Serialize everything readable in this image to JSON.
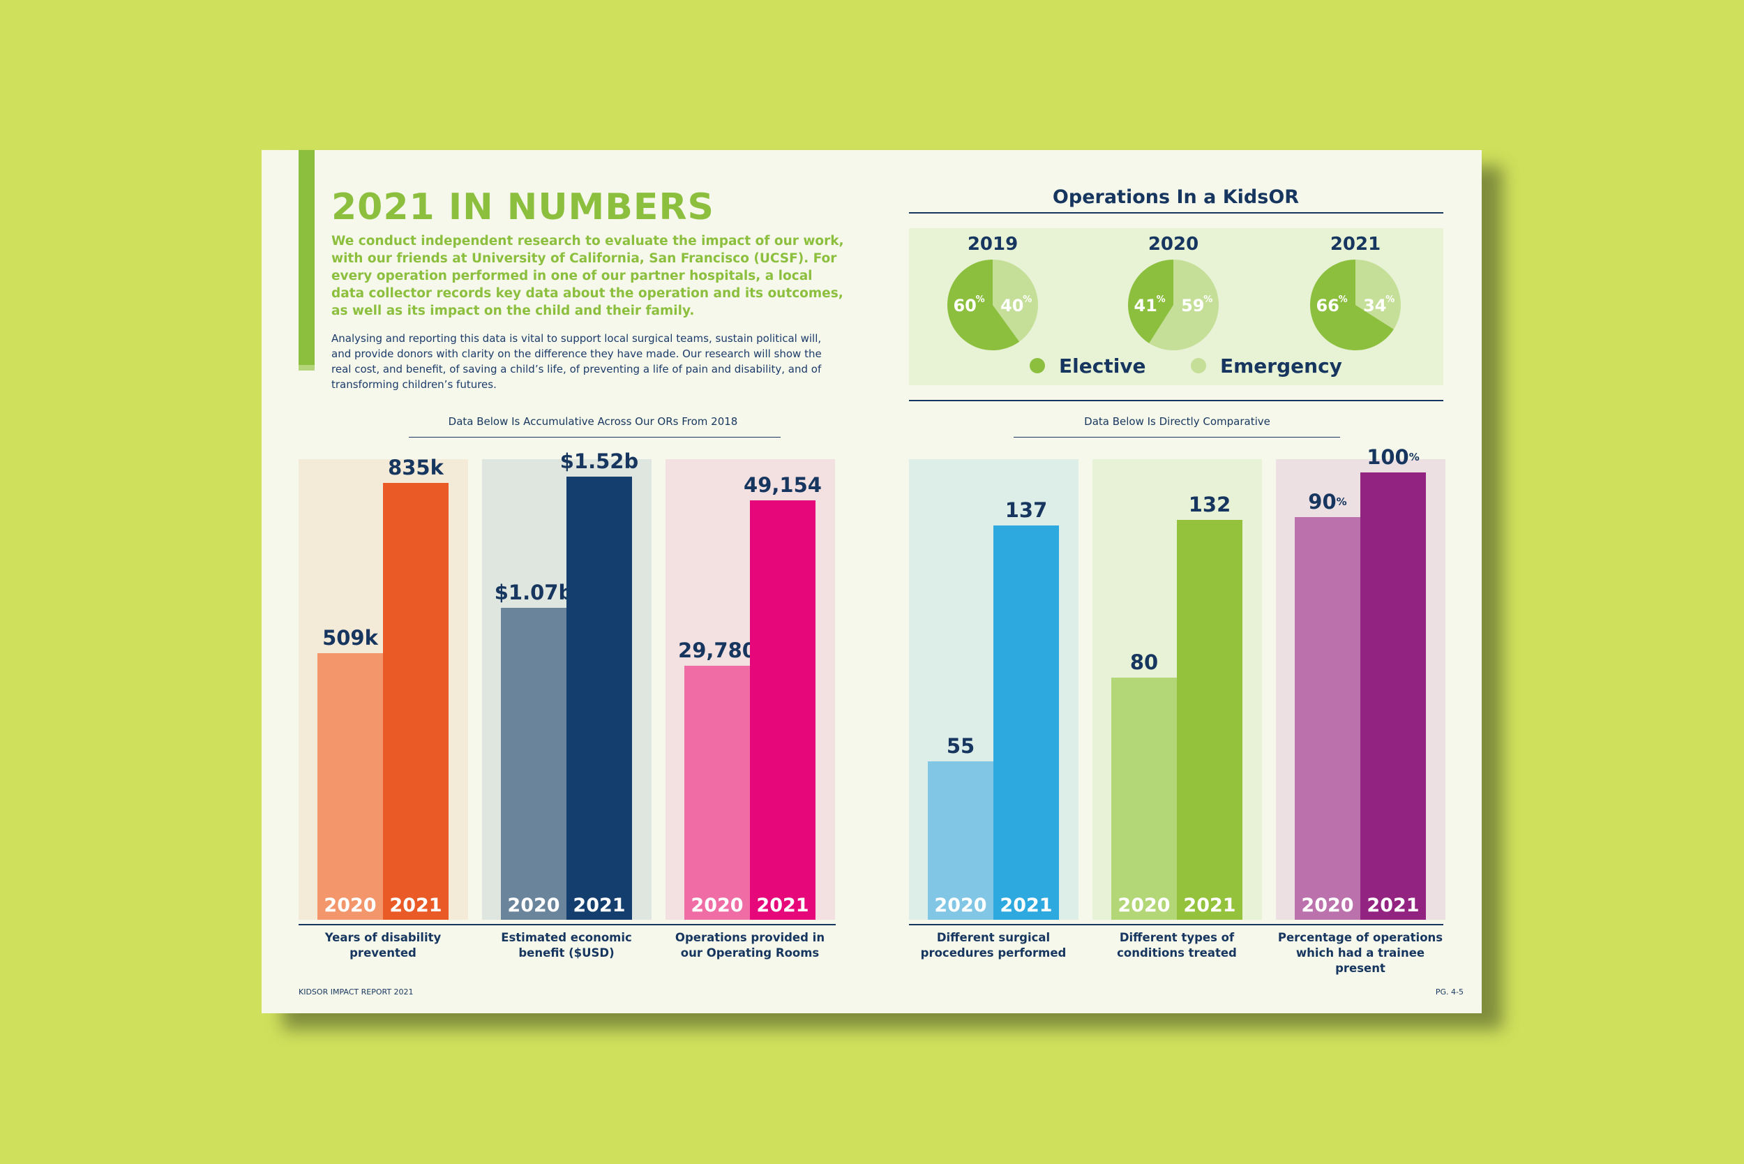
{
  "header": {
    "title": "2021 IN NUMBERS",
    "intro": "We conduct independent research to evaluate the impact of our work, with our friends at University of California, San Francisco (UCSF). For every operation performed in one of our partner hospitals, a local data collector records key data about the operation and its outcomes, as well as its impact on the child and their family.",
    "body": "Analysing and reporting this data is vital to support local surgical teams, sustain political will, and provide donors with clarity on the difference they have made. Our research will show the real cost, and benefit, of saving a child’s life, of preventing a life of pain and disability, and of transforming children’s futures."
  },
  "operations": {
    "title": "Operations In a KidsOR",
    "legend": {
      "elective": "Elective",
      "emergency": "Emergency"
    }
  },
  "notes": {
    "left": "Data Below Is Accumulative Across Our ORs From 2018",
    "right": "Data Below Is Directly Comparative"
  },
  "colors": {
    "background": "#cfe05c",
    "page": "#f5f8ea",
    "brand_green": "#8dbf3f",
    "navy": "#17365f",
    "elective": "#8dbf3f",
    "emergency": "#c5df98"
  },
  "footer": {
    "left": "KIDSOR IMPACT REPORT 2021",
    "right": "PG. 4-5"
  },
  "chart_data": [
    {
      "type": "pie",
      "title": "2019",
      "slices": [
        {
          "label": "Elective",
          "value": 60,
          "display": "60",
          "unit": "%",
          "color": "#8dbf3f"
        },
        {
          "label": "Emergency",
          "value": 40,
          "display": "40",
          "unit": "%",
          "color": "#c5df98"
        }
      ]
    },
    {
      "type": "pie",
      "title": "2020",
      "slices": [
        {
          "label": "Elective",
          "value": 41,
          "display": "41",
          "unit": "%",
          "color": "#8dbf3f"
        },
        {
          "label": "Emergency",
          "value": 59,
          "display": "59",
          "unit": "%",
          "color": "#c5df98"
        }
      ]
    },
    {
      "type": "pie",
      "title": "2021",
      "slices": [
        {
          "label": "Elective",
          "value": 66,
          "display": "66",
          "unit": "%",
          "color": "#8dbf3f"
        },
        {
          "label": "Emergency",
          "value": 34,
          "display": "34",
          "unit": "%",
          "color": "#c5df98"
        }
      ]
    },
    {
      "type": "bar",
      "xlabel": "Years of disability prevented",
      "categories": [
        "2020",
        "2021"
      ],
      "values": [
        509000,
        835000
      ],
      "labels": [
        "509k",
        "835k"
      ],
      "ylim": [
        0,
        880000
      ],
      "panel_color": "#f3ead8",
      "colors": [
        "#f3966b",
        "#ea5a27"
      ]
    },
    {
      "type": "bar",
      "xlabel": "Estimated economic benefit ($USD)",
      "categories": [
        "2020",
        "2021"
      ],
      "values": [
        1.07,
        1.52
      ],
      "labels": [
        "$1.07b",
        "$1.52b"
      ],
      "ylim": [
        0,
        1.58
      ],
      "panel_color": "#dfe6df",
      "colors": [
        "#6a849c",
        "#143e6e"
      ]
    },
    {
      "type": "bar",
      "xlabel": "Operations provided in our Operating Rooms",
      "categories": [
        "2020",
        "2021"
      ],
      "values": [
        29780,
        49154
      ],
      "labels": [
        "29,780",
        "49,154"
      ],
      "ylim": [
        0,
        54000
      ],
      "panel_color": "#f3e0e0",
      "colors": [
        "#ef6ca4",
        "#e6077b"
      ]
    },
    {
      "type": "bar",
      "xlabel": "Different surgical procedures performed",
      "categories": [
        "2020",
        "2021"
      ],
      "values": [
        55,
        137
      ],
      "labels": [
        "55",
        "137"
      ],
      "ylim": [
        0,
        160
      ],
      "panel_color": "#ddeee8",
      "colors": [
        "#82c6e6",
        "#2ea9df"
      ]
    },
    {
      "type": "bar",
      "xlabel": "Different types of conditions treated",
      "categories": [
        "2020",
        "2021"
      ],
      "values": [
        80,
        132
      ],
      "labels": [
        "80",
        "132"
      ],
      "ylim": [
        0,
        152
      ],
      "panel_color": "#e8f2d6",
      "colors": [
        "#b3d677",
        "#94c23c"
      ]
    },
    {
      "type": "bar",
      "xlabel": "Percentage of operations which had a trainee present",
      "categories": [
        "2020",
        "2021"
      ],
      "values": [
        90,
        100
      ],
      "labels": [
        "90",
        "100"
      ],
      "unit": "%",
      "ylim": [
        0,
        103
      ],
      "panel_color": "#ece0e3",
      "colors": [
        "#bb71ab",
        "#932380"
      ]
    }
  ]
}
